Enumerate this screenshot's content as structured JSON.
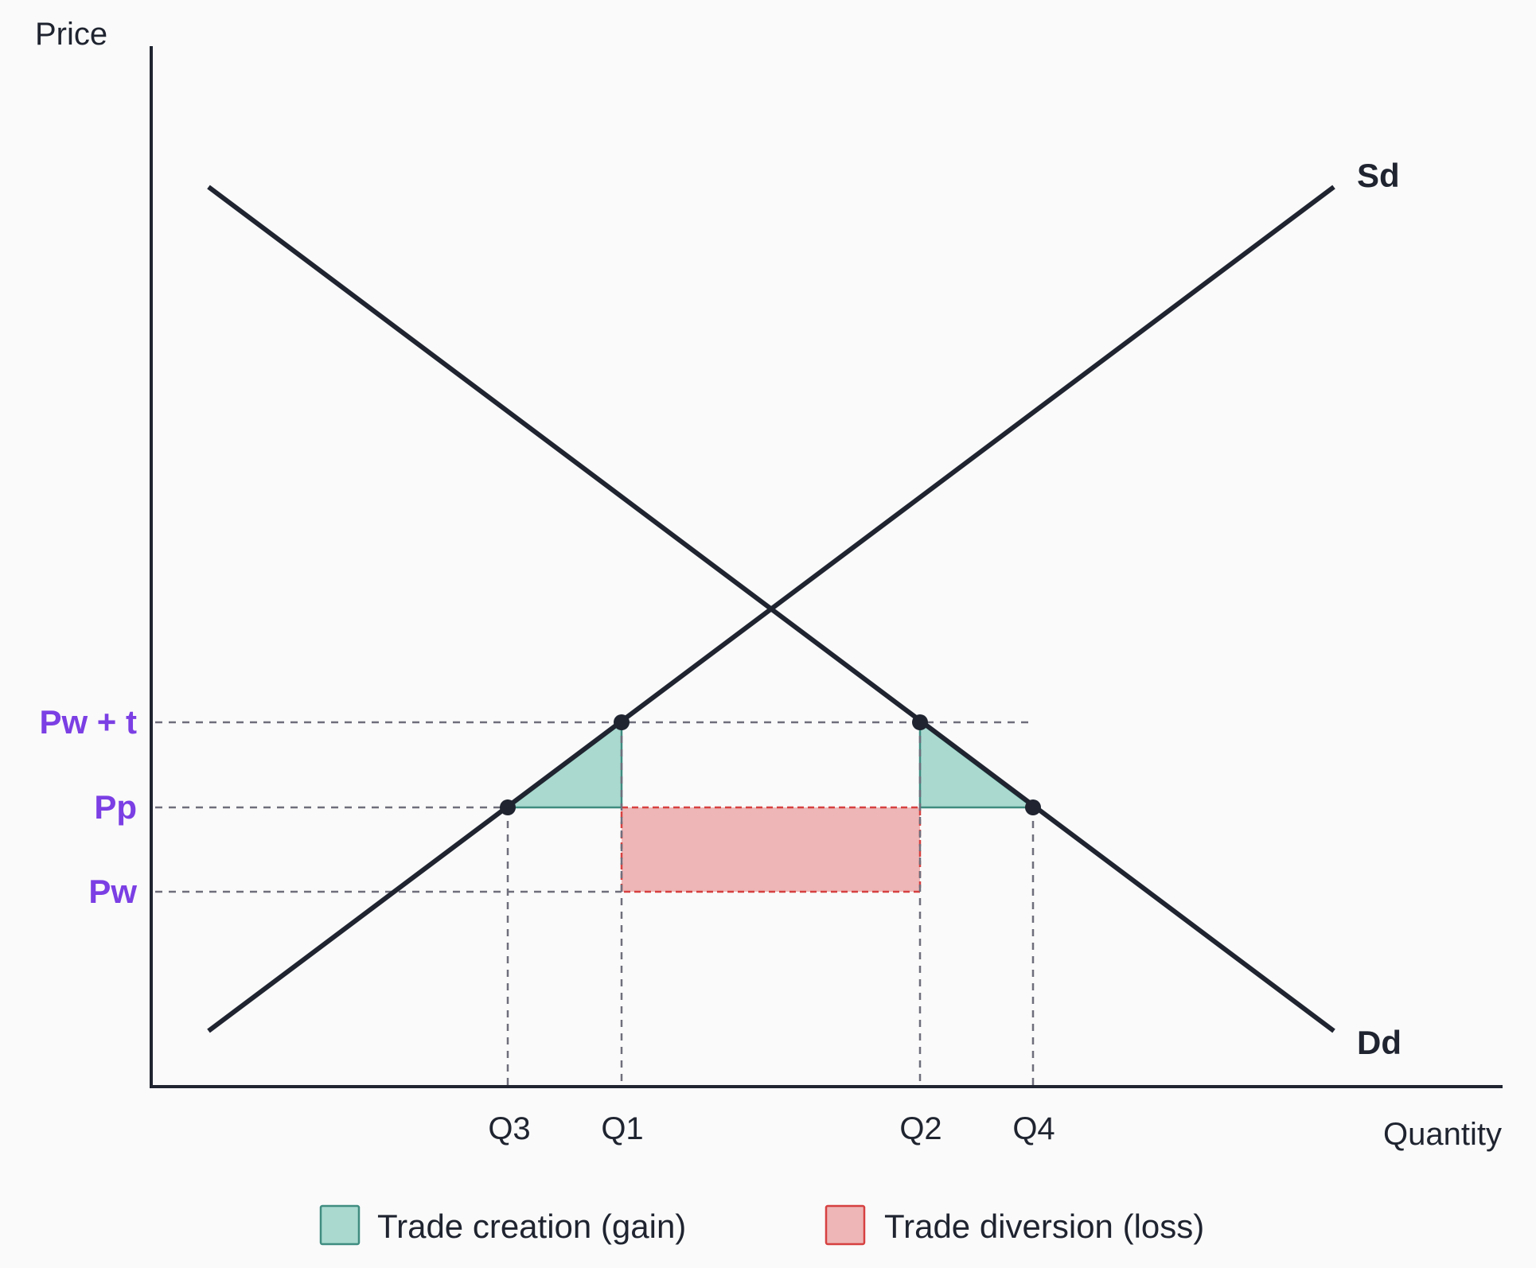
{
  "diagram": {
    "axes": {
      "y_title": "Price",
      "x_title": "Quantity"
    },
    "curves": {
      "supply_label": "Sd",
      "demand_label": "Dd"
    },
    "price_levels": [
      {
        "id": "pw_t",
        "label": "Pw + t"
      },
      {
        "id": "pp",
        "label": "Pp"
      },
      {
        "id": "pw",
        "label": "Pw"
      }
    ],
    "quantities": [
      {
        "id": "q3",
        "label": "Q3"
      },
      {
        "id": "q1",
        "label": "Q1"
      },
      {
        "id": "q2",
        "label": "Q2"
      },
      {
        "id": "q4",
        "label": "Q4"
      }
    ],
    "legend": {
      "gain_label": "Trade creation (gain)",
      "loss_label": "Trade diversion (loss)"
    },
    "colors": {
      "price_label": "#7b3fe4",
      "line": "#1f2430",
      "gain_fill": "#a9d9cf",
      "gain_stroke": "#3f8c80",
      "loss_fill": "#eeb6b6",
      "loss_stroke": "#d64040"
    }
  }
}
